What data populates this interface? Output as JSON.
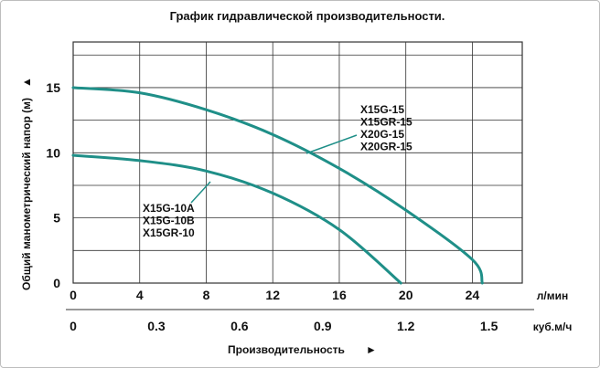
{
  "chart_data": {
    "type": "line",
    "title": "График гидравлической производительности.",
    "ylabel": "Общий манометрический напор (м)",
    "xlabel": "Производительность",
    "x_unit_primary": "л/мин",
    "x_unit_secondary": "куб.м/ч",
    "x_ticks_primary": [
      "0",
      "4",
      "8",
      "12",
      "16",
      "20",
      "24"
    ],
    "x_ticks_secondary": [
      "0",
      "0.3",
      "0.6",
      "0.9",
      "1.2",
      "1.5"
    ],
    "secondary_tick_values": [
      0,
      0.3,
      0.6,
      0.9,
      1.2,
      1.5
    ],
    "y_ticks": [
      "0",
      "5",
      "10",
      "15"
    ],
    "xlim": [
      0,
      27
    ],
    "ylim": [
      0,
      18.5
    ],
    "grid": true,
    "arrow_glyph": "►",
    "y_arrow_glyph": "▲",
    "curve_color": "#1f8f88",
    "series": [
      {
        "labels": [
          "X15G-15",
          "X15GR-15",
          "X20G-15",
          "X20GR-15"
        ],
        "x": [
          0,
          4,
          8,
          12,
          16,
          20,
          24,
          24.6
        ],
        "y": [
          15,
          14.6,
          13.3,
          11.4,
          8.8,
          5.6,
          1.8,
          0
        ]
      },
      {
        "labels": [
          "X15G-10A",
          "X15G-10B",
          "X15GR-10"
        ],
        "x": [
          0,
          4,
          8,
          12,
          16,
          19.7
        ],
        "y": [
          9.8,
          9.4,
          8.6,
          6.9,
          4.1,
          0
        ]
      }
    ]
  }
}
